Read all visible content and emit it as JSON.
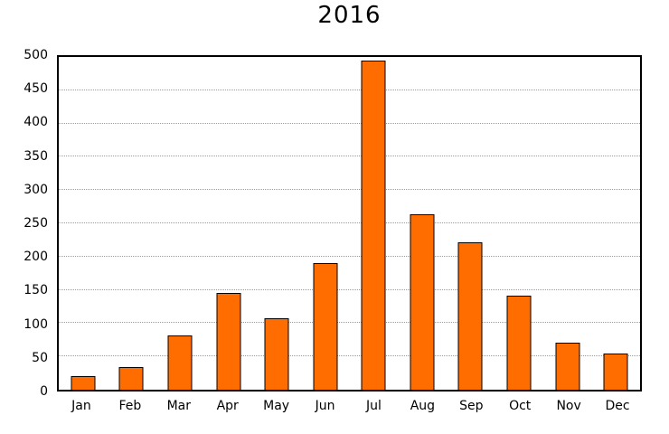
{
  "title": "2016",
  "chart_data": {
    "type": "bar",
    "title": "2016",
    "categories": [
      "Jan",
      "Feb",
      "Mar",
      "Apr",
      "May",
      "Jun",
      "Jul",
      "Aug",
      "Sep",
      "Oct",
      "Nov",
      "Dec"
    ],
    "values": [
      21,
      34,
      82,
      146,
      107,
      190,
      495,
      264,
      221,
      142,
      71,
      54
    ],
    "xlabel": "",
    "ylabel": "",
    "ylim": [
      0,
      500
    ],
    "yticks": [
      0,
      50,
      100,
      150,
      200,
      250,
      300,
      350,
      400,
      450,
      500
    ],
    "grid": true,
    "legend": "none",
    "bar_color": "#ff6c00",
    "bar_edge_color": "#000000",
    "gridline_color": "#999999",
    "frame_color": "#000000",
    "background_color": "#ffffff"
  }
}
